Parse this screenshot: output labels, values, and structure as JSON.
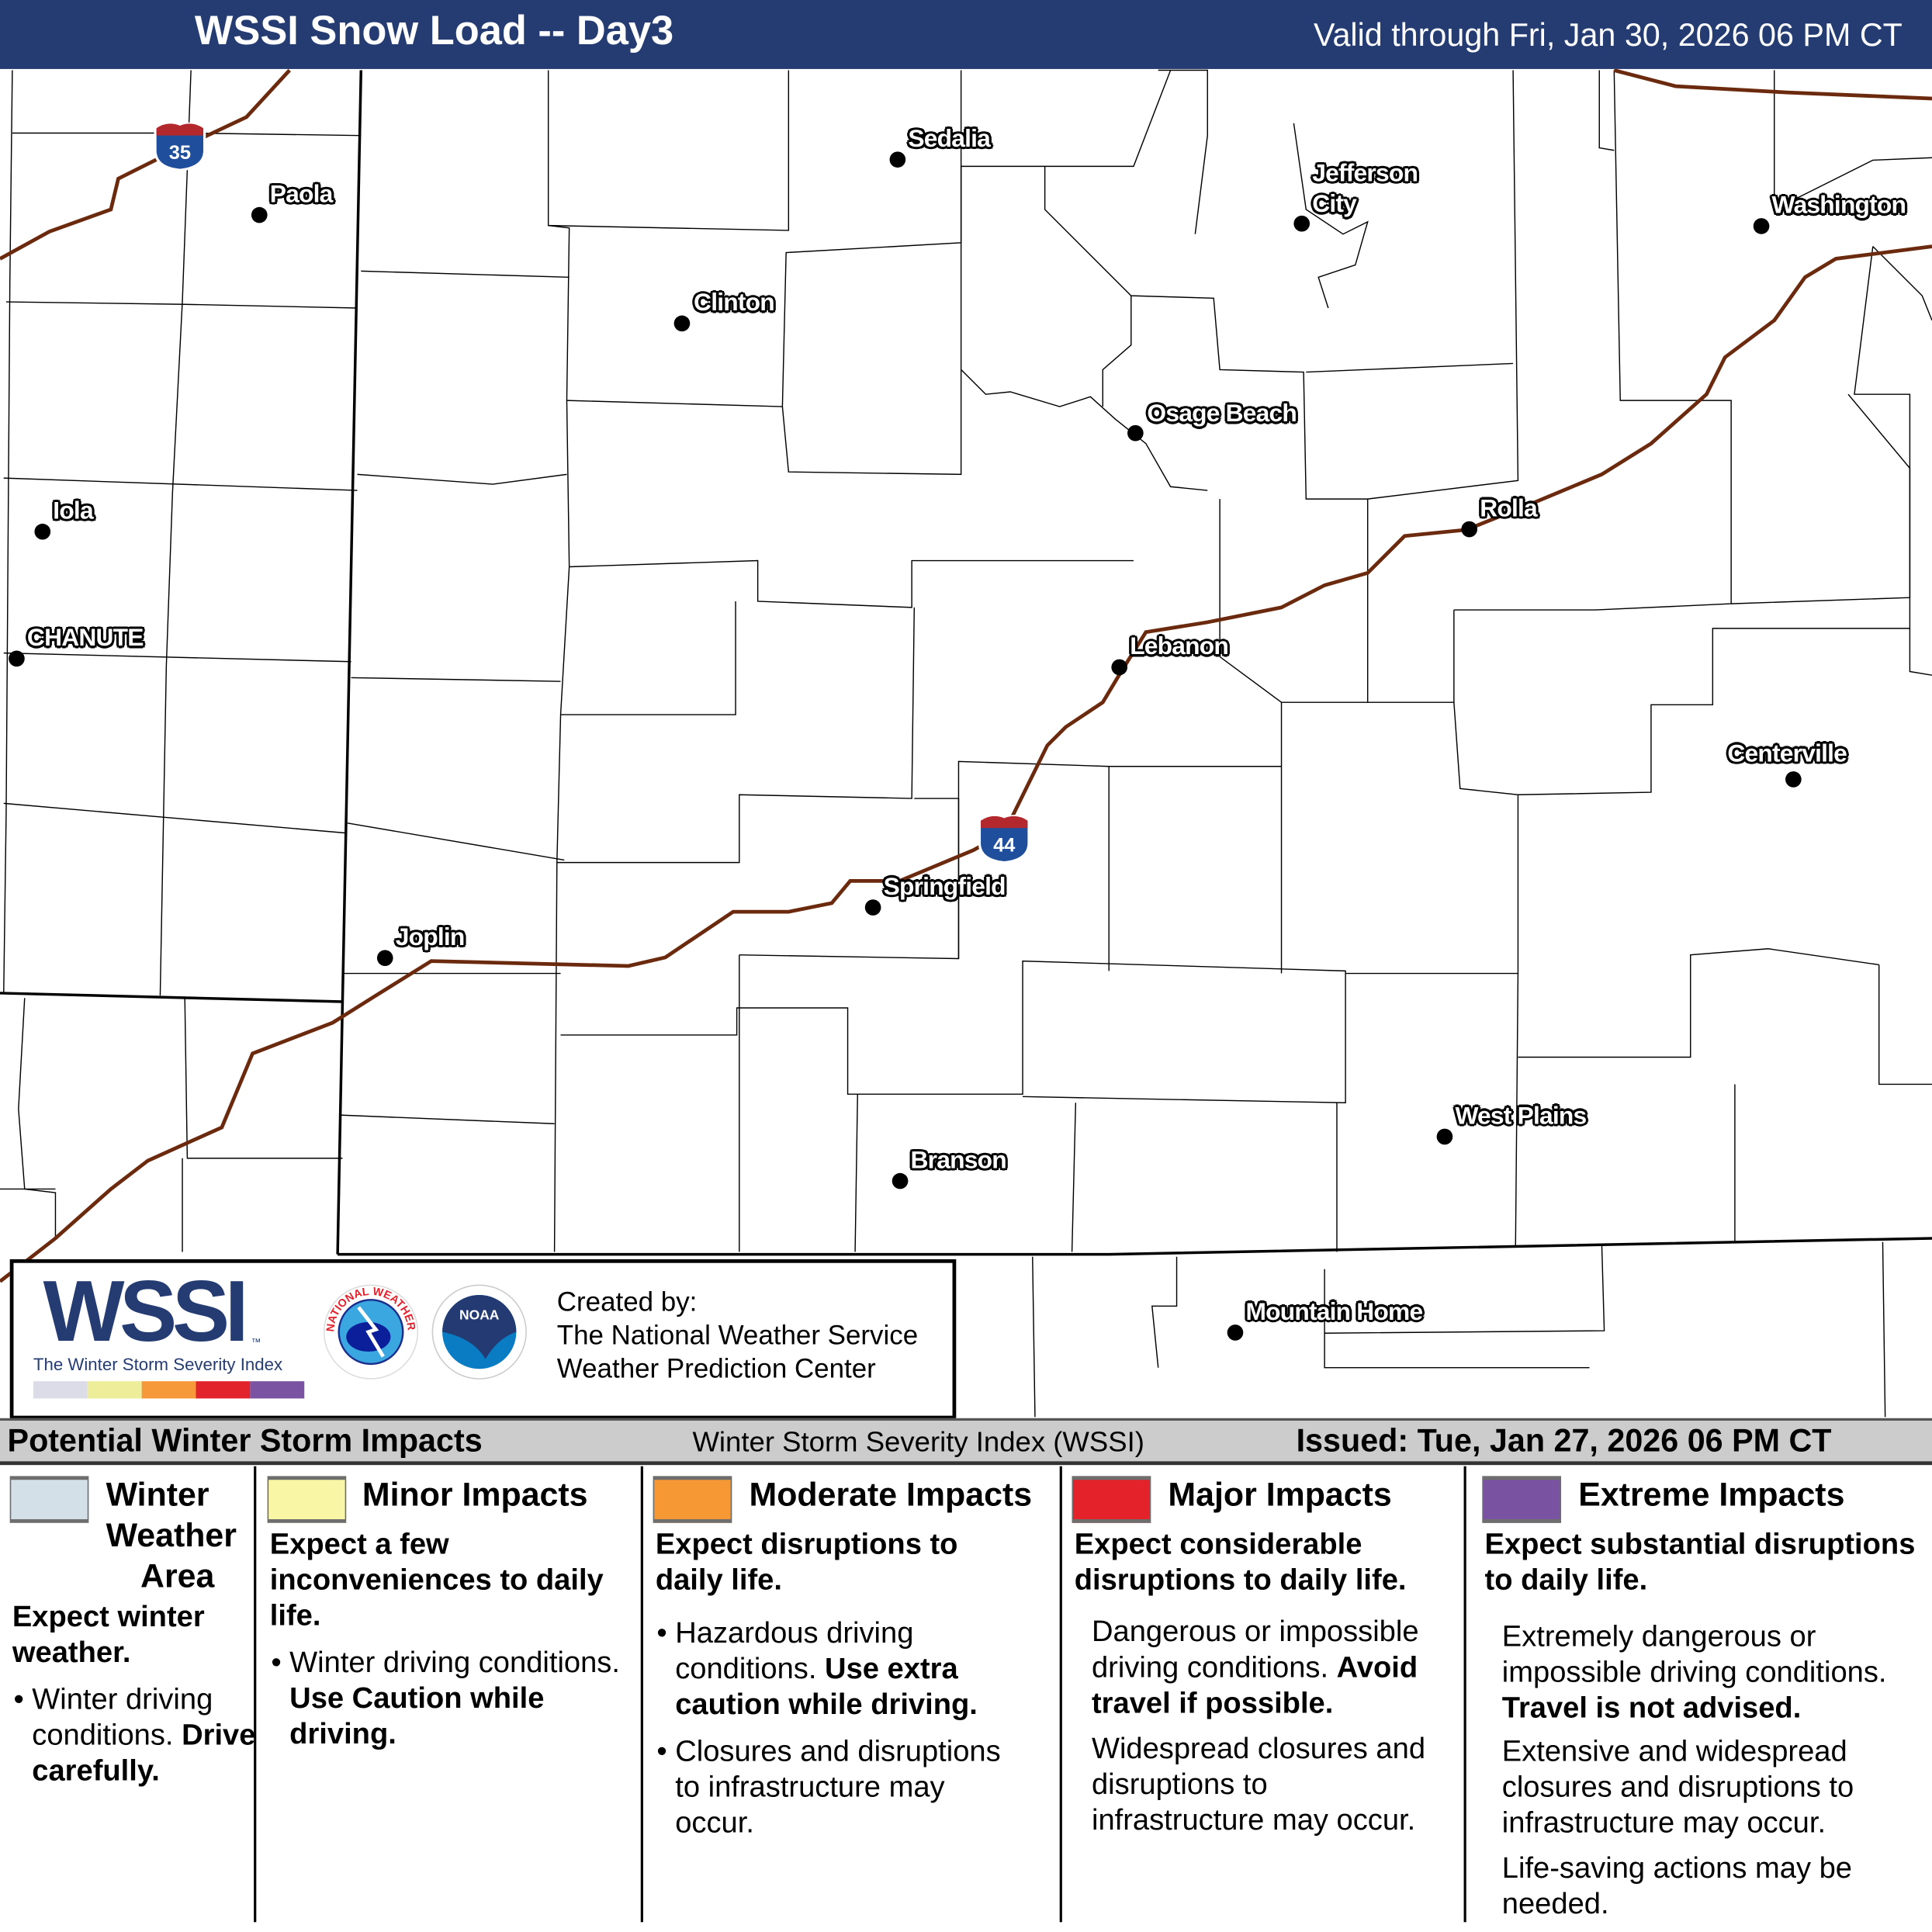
{
  "header": {
    "title": "WSSI Snow Load -- Day3",
    "valid": "Valid through Fri, Jan 30, 2026 06 PM CT"
  },
  "map": {
    "interstates": [
      {
        "label": "35"
      },
      {
        "label": "44"
      }
    ],
    "cities": [
      {
        "name": "Sedalia"
      },
      {
        "name": "Paola"
      },
      {
        "name": "Jefferson City",
        "line1": "Jefferson",
        "line2": "City"
      },
      {
        "name": "Washington"
      },
      {
        "name": "Clinton"
      },
      {
        "name": "Osage Beach"
      },
      {
        "name": "Iola"
      },
      {
        "name": "Rolla"
      },
      {
        "name": "CHANUTE"
      },
      {
        "name": "Lebanon"
      },
      {
        "name": "Centerville"
      },
      {
        "name": "Springfield"
      },
      {
        "name": "Joplin"
      },
      {
        "name": "West Plains"
      },
      {
        "name": "Branson"
      },
      {
        "name": "Mountain Home"
      }
    ],
    "colors": {
      "interstate": "#6b2a0e",
      "shield_blue": "#1f4e9c",
      "shield_red": "#b3282d"
    }
  },
  "logo": {
    "wssi": "WSSI",
    "tm": "™",
    "tagline": "The Winter Storm Severity Index",
    "nws": "NATIONAL WEATHER SERVICE",
    "noaa": "NOAA",
    "created_by": "Created by:",
    "org1": "The National Weather Service",
    "org2": "Weather Prediction Center",
    "scale_colors": [
      "#dcdce8",
      "#eeee9a",
      "#f6993a",
      "#e3232c",
      "#7a54a3"
    ]
  },
  "legend": {
    "header_left": "Potential Winter Storm Impacts",
    "header_mid": "Winter Storm Severity Index (WSSI)",
    "header_right": "Issued: Tue, Jan 27, 2026 06 PM CT",
    "categories": [
      {
        "name": "Winter Weather Area",
        "n1": "Winter",
        "n2": "Weather",
        "n3": "Area",
        "color": "#d3e0e8",
        "summary": "Expect winter weather.",
        "b1": "Winter driving conditions.",
        "b1b": "Drive carefully."
      },
      {
        "name": "Minor Impacts",
        "color": "#f9f6a5",
        "summary": "Expect a few inconveniences to daily life.",
        "b1": "Winter driving conditions.",
        "b1b": "Use Caution while driving."
      },
      {
        "name": "Moderate Impacts",
        "color": "#f69833",
        "summary": "Expect disruptions to daily life.",
        "b1": "Hazardous driving conditions.",
        "b1b": "Use extra caution while driving.",
        "b2": "Closures and disruptions to infrastructure may occur."
      },
      {
        "name": "Major Impacts",
        "color": "#e42229",
        "summary": "Expect considerable disruptions to daily life.",
        "b1": "Dangerous or impossible driving conditions.",
        "b1b": "Avoid travel if possible.",
        "b2": "Widespread closures and disruptions to infrastructure may occur."
      },
      {
        "name": "Extreme Impacts",
        "color": "#7953a1",
        "summary": "Expect substantial disruptions to daily life.",
        "b1": "Extremely dangerous or impossible driving conditions.",
        "b1b": "Travel is not advised.",
        "b2": "Extensive and widespread closures and disruptions to infrastructure may occur.",
        "b3": "Life-saving actions may be needed."
      }
    ]
  }
}
